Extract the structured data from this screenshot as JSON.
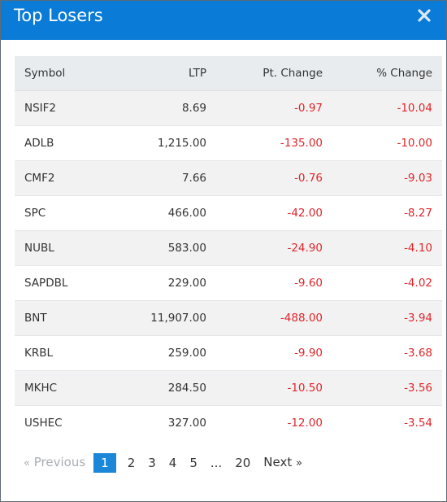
{
  "modal": {
    "title": "Top Losers",
    "close_icon": "close-icon"
  },
  "table": {
    "headers": {
      "symbol": "Symbol",
      "ltp": "LTP",
      "pt_change": "Pt. Change",
      "pct_change": "% Change"
    },
    "rows": [
      {
        "symbol": "NSIF2",
        "ltp": "8.69",
        "pt_change": "-0.97",
        "pct_change": "-10.04"
      },
      {
        "symbol": "ADLB",
        "ltp": "1,215.00",
        "pt_change": "-135.00",
        "pct_change": "-10.00"
      },
      {
        "symbol": "CMF2",
        "ltp": "7.66",
        "pt_change": "-0.76",
        "pct_change": "-9.03"
      },
      {
        "symbol": "SPC",
        "ltp": "466.00",
        "pt_change": "-42.00",
        "pct_change": "-8.27"
      },
      {
        "symbol": "NUBL",
        "ltp": "583.00",
        "pt_change": "-24.90",
        "pct_change": "-4.10"
      },
      {
        "symbol": "SAPDBL",
        "ltp": "229.00",
        "pt_change": "-9.60",
        "pct_change": "-4.02"
      },
      {
        "symbol": "BNT",
        "ltp": "11,907.00",
        "pt_change": "-488.00",
        "pct_change": "-3.94"
      },
      {
        "symbol": "KRBL",
        "ltp": "259.00",
        "pt_change": "-9.90",
        "pct_change": "-3.68"
      },
      {
        "symbol": "MKHC",
        "ltp": "284.50",
        "pt_change": "-10.50",
        "pct_change": "-3.56"
      },
      {
        "symbol": "USHEC",
        "ltp": "327.00",
        "pt_change": "-12.00",
        "pct_change": "-3.54"
      }
    ]
  },
  "pagination": {
    "prev_arrow": "«",
    "prev_label": "Previous",
    "pages": [
      "1",
      "2",
      "3",
      "4",
      "5"
    ],
    "ellipsis": "...",
    "last_page": "20",
    "next_label": "Next",
    "next_arrow": "»",
    "current": "1"
  },
  "colors": {
    "header_bg": "#0a7bd6",
    "negative": "#e0262b",
    "active_page": "#1b87d8"
  }
}
